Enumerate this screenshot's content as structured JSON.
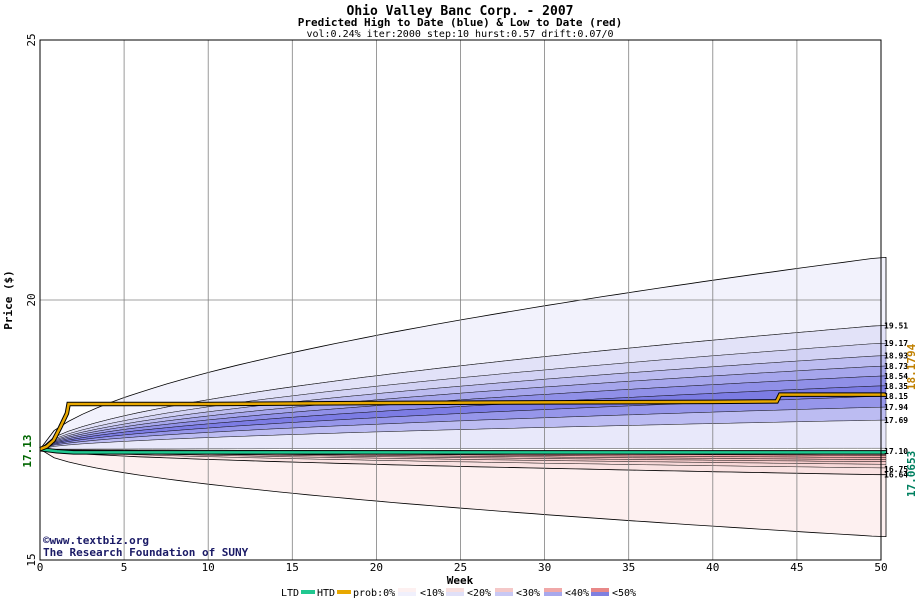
{
  "chart_data": {
    "type": "area",
    "title": "Ohio Valley Banc Corp. - 2007",
    "subtitle": "Predicted High to Date (blue) &  Low to Date (red)",
    "params": "vol:0.24% iter:2000 step:10 hurst:0.57 drift:0.07/0",
    "xlabel": "Week",
    "ylabel": "Price ($)",
    "xlim": [
      0,
      50
    ],
    "ylim": [
      15,
      25
    ],
    "xticks": [
      0,
      5,
      10,
      15,
      20,
      25,
      30,
      35,
      40,
      45,
      50
    ],
    "yticks": [
      15,
      20,
      25
    ],
    "grid": true,
    "start_price": 17.13,
    "start_label": "17.13",
    "high_bands": {
      "final": [
        20.82,
        19.51,
        19.17,
        18.93,
        18.73,
        18.54,
        18.35,
        18.15,
        17.94,
        17.69
      ],
      "colors": [
        "#f2f2fc",
        "#e2e2f8",
        "#d2d2f4",
        "#bcbcf0",
        "#a6a6ec",
        "#9090e8",
        "#7c7ce4",
        "#9696ea",
        "#bcbcf2",
        "#e8e8fa"
      ],
      "labels": [
        "19.51",
        "19.17",
        "18.93",
        "18.73",
        "18.54",
        "18.35",
        "18.15",
        "17.94",
        "17.69"
      ]
    },
    "low_bands": {
      "final": [
        17.09,
        17.05,
        17.01,
        16.97,
        16.93,
        16.89,
        16.84,
        16.77,
        16.64,
        15.45
      ],
      "colors": [
        "#f4c0c0",
        "#f4b0b0",
        "#f4a8a8",
        "#f2b4b4",
        "#f4c2c2",
        "#f6cccc",
        "#f8d8d8",
        "#fae2e2",
        "#fdf0f0"
      ],
      "labels": [
        "17.10",
        "16.75",
        "16.64"
      ]
    },
    "htd_actual": {
      "name": "HTD",
      "color": "#e8a800",
      "points": [
        [
          0,
          17.13
        ],
        [
          0.4,
          17.18
        ],
        [
          0.8,
          17.3
        ],
        [
          1.2,
          17.55
        ],
        [
          1.6,
          17.82
        ],
        [
          1.7,
          18.0
        ],
        [
          10,
          18.0
        ],
        [
          20,
          18.02
        ],
        [
          30,
          18.03
        ],
        [
          40,
          18.04
        ],
        [
          43.8,
          18.05
        ],
        [
          44,
          18.18
        ],
        [
          50.3,
          18.18
        ]
      ],
      "last": "18.1794"
    },
    "ltd_actual": {
      "name": "LTD",
      "color": "#20c890",
      "points": [
        [
          0,
          17.13
        ],
        [
          1,
          17.09
        ],
        [
          2,
          17.07
        ],
        [
          3,
          17.07
        ],
        [
          50.3,
          17.07
        ]
      ],
      "last": "17.0653"
    },
    "legend": {
      "items": [
        "LTD",
        "HTD",
        "prob:0%",
        "<10%",
        "<20%",
        "<30%",
        "<40%",
        "<50%"
      ],
      "swatch_blue": [
        "#ffffff",
        "#f0f0fc",
        "#e0e0f8",
        "#c8c8f4",
        "#a8a8ec",
        "#8080e0"
      ],
      "swatch_red": [
        "#ffffff",
        "#fdf0f0",
        "#f8dede",
        "#f4c8c8",
        "#f0a8a8",
        "#e88888"
      ]
    },
    "credit": [
      "©www.textbiz.org",
      "The Research Foundation of SUNY"
    ]
  }
}
